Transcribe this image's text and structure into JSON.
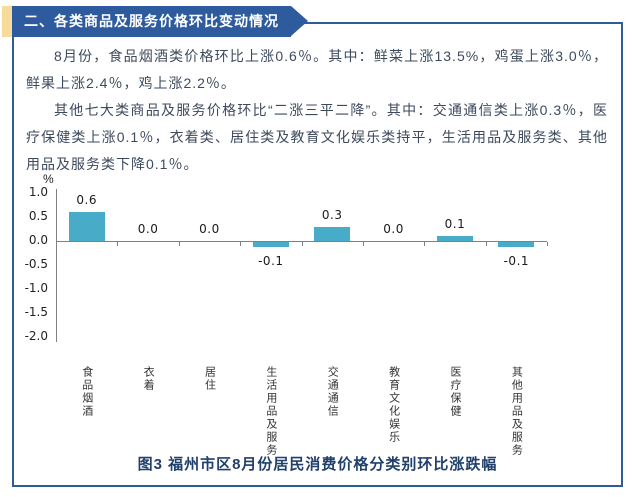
{
  "header": {
    "title": "二、各类商品及服务价格环比变动情况"
  },
  "paragraphs": [
    "8月份，食品烟酒类价格环比上涨0.6％。其中：鲜菜上涨13.5%，鸡蛋上涨3.0％，鲜果上涨2.4％，鸡上涨2.2％。",
    "其他七大类商品及服务价格环比“二涨三平二降”。其中：交通通信类上涨0.3％，医疗保健类上涨0.1％，衣着类、居住类及教育文化娱乐类持平，生活用品及服务类、其他用品及服务类下降0.1％。"
  ],
  "chart_data": {
    "type": "bar",
    "categories": [
      "食品烟酒",
      "衣着",
      "居住",
      "生活用品及服务",
      "交通通信",
      "教育文化娱乐",
      "医疗保健",
      "其他用品及服务"
    ],
    "values": [
      0.6,
      0,
      0,
      -0.1,
      0.3,
      0,
      0.1,
      -0.1
    ],
    "value_labels": [
      "0.6",
      "0.0",
      "0.0",
      "-0.1",
      "0.3",
      "0.0",
      "0.1",
      "-0.1"
    ],
    "unit_label": "%",
    "yticks": [
      "1.0",
      "0.5",
      "0.0",
      "-0.5",
      "-1.0",
      "-1.5",
      "-2.0"
    ],
    "ylim": [
      -2.0,
      1.0
    ],
    "grid": false,
    "legend": "none",
    "bar_color": "#48acc8",
    "title": "图3 福州市区8月份居民消费价格分类别环比涨跌幅"
  },
  "caption": "图3 福州市区8月份居民消费价格分类别环比涨跌幅",
  "colors": {
    "banner_bg": "#2e5b9d",
    "banner_accent": "#f6db9b",
    "box_border": "#2f5c98",
    "body_text": "#3d4a5c",
    "caption_text": "#21406b",
    "bar": "#48acc8",
    "axis": "#808080"
  }
}
